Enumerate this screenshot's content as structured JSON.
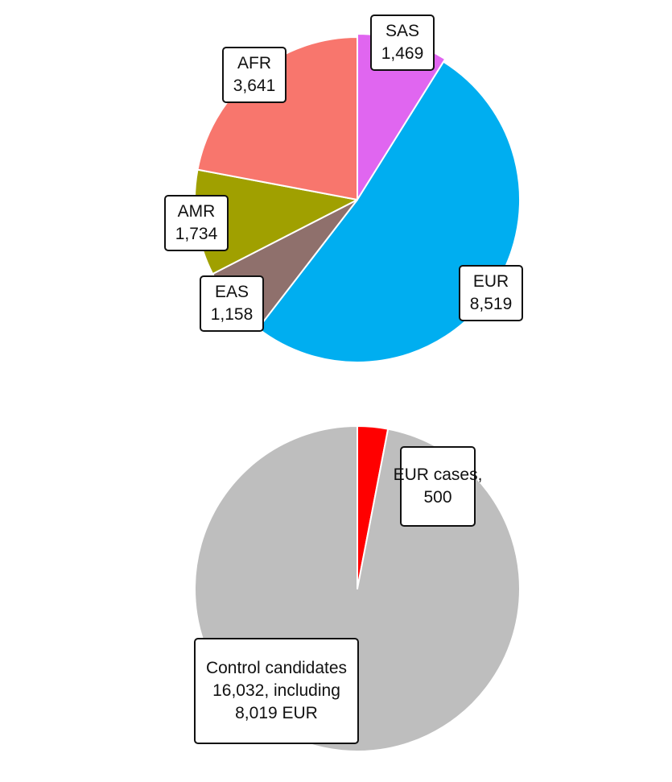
{
  "chart_data": [
    {
      "type": "pie",
      "title": "",
      "slices": [
        {
          "name": "SAS",
          "value": 1469,
          "value_label": "1,469",
          "color": "#e066f0"
        },
        {
          "name": "EUR",
          "value": 8519,
          "value_label": "8,519",
          "color": "#00aef0"
        },
        {
          "name": "EAS",
          "value": 1158,
          "value_label": "1,158",
          "color": "#8f706c"
        },
        {
          "name": "AMR",
          "value": 1734,
          "value_label": "1,734",
          "color": "#a0a000"
        },
        {
          "name": "AFR",
          "value": 3641,
          "value_label": "3,641",
          "color": "#f8766d"
        }
      ],
      "legend": "none"
    },
    {
      "type": "pie",
      "title": "",
      "slices": [
        {
          "name": "EUR cases,",
          "value": 500,
          "value_label": "500",
          "color": "#ff0000"
        },
        {
          "name": "Control candidates",
          "value": 16032,
          "value_label": "16,032, including",
          "extra_label": "8,019 EUR",
          "color": "#bebebe"
        }
      ],
      "legend": "none"
    }
  ]
}
